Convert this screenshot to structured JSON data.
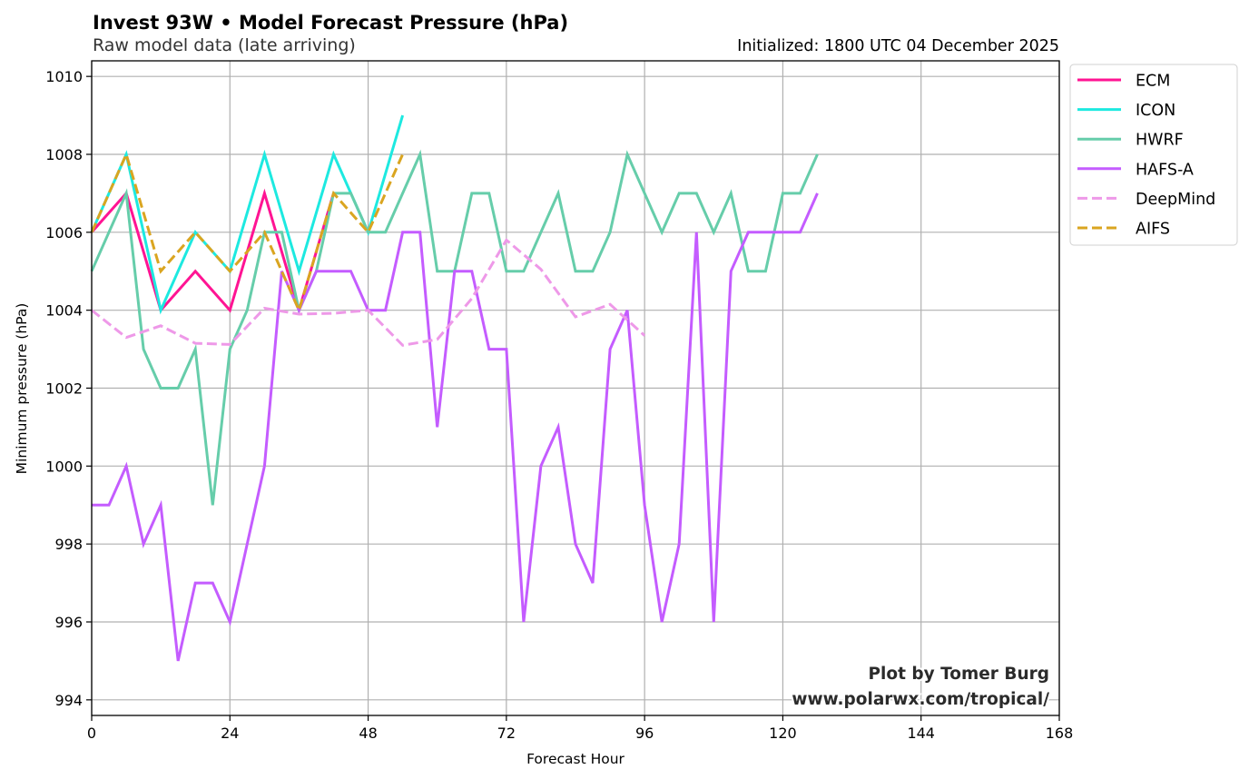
{
  "chart_data": {
    "type": "line",
    "title": "Invest 93W • Model Forecast Pressure (hPa)",
    "subtitle": "Raw model data (late arriving)",
    "initialized": "Initialized: 1800 UTC 04 December 2025",
    "xlabel": "Forecast Hour",
    "ylabel": "Minimum pressure (hPa)",
    "xlim": [
      0,
      168
    ],
    "ylim": [
      993.6,
      1010.4
    ],
    "xticks": [
      0,
      24,
      48,
      72,
      96,
      120,
      144,
      168
    ],
    "yticks": [
      994,
      996,
      998,
      1000,
      1002,
      1004,
      1006,
      1008,
      1010
    ],
    "grid": true,
    "legend_position": "outside-top-right",
    "credit": [
      "Plot by Tomer Burg",
      "www.polarwx.com/tropical/"
    ],
    "series": [
      {
        "name": "ECM",
        "color": "#ff1493",
        "dashed": false,
        "x": [
          0,
          6,
          12,
          18,
          24,
          30,
          36,
          42
        ],
        "y": [
          1006,
          1007,
          1004,
          1005,
          1004,
          1007,
          1004,
          1007
        ]
      },
      {
        "name": "ICON",
        "color": "#1de9e0",
        "dashed": false,
        "x": [
          0,
          6,
          12,
          18,
          24,
          30,
          36,
          42,
          48,
          54
        ],
        "y": [
          1006,
          1008,
          1004,
          1006,
          1005,
          1008,
          1005,
          1008,
          1006,
          1009
        ]
      },
      {
        "name": "HWRF",
        "color": "#66cdaa",
        "dashed": false,
        "x": [
          0,
          3,
          6,
          9,
          12,
          15,
          18,
          21,
          24,
          27,
          30,
          33,
          36,
          39,
          42,
          45,
          48,
          51,
          54,
          57,
          60,
          63,
          66,
          69,
          72,
          75,
          78,
          81,
          84,
          87,
          90,
          93,
          96,
          99,
          102,
          105,
          108,
          111,
          114,
          117,
          120,
          123,
          126
        ],
        "y": [
          1005,
          1006,
          1007,
          1003,
          1002,
          1002,
          1003,
          999,
          1003,
          1004,
          1006,
          1006,
          1004,
          1005,
          1007,
          1007,
          1006,
          1006,
          1007,
          1008,
          1005,
          1005,
          1007,
          1007,
          1005,
          1005,
          1006,
          1007,
          1005,
          1005,
          1006,
          1008,
          1007,
          1006,
          1007,
          1007,
          1006,
          1007,
          1005,
          1005,
          1007,
          1007,
          1008
        ]
      },
      {
        "name": "HAFS-A",
        "color": "#c45cff",
        "dashed": false,
        "x": [
          0,
          3,
          6,
          9,
          12,
          15,
          18,
          21,
          24,
          27,
          30,
          33,
          36,
          39,
          42,
          45,
          48,
          51,
          54,
          57,
          60,
          63,
          66,
          69,
          72,
          75,
          78,
          81,
          84,
          87,
          90,
          93,
          96,
          99,
          102,
          105,
          108,
          111,
          114,
          117,
          120,
          123,
          126
        ],
        "y": [
          999,
          999,
          1000,
          998,
          999,
          995,
          997,
          997,
          996,
          998,
          1000,
          1005,
          1004,
          1005,
          1005,
          1005,
          1004,
          1004,
          1006,
          1006,
          1001,
          1005,
          1005,
          1003,
          1003,
          996,
          1000,
          1001,
          998,
          997,
          1003,
          1004,
          999,
          996,
          998,
          1006,
          996,
          1005,
          1006,
          1006,
          1006,
          1006,
          1007
        ]
      },
      {
        "name": "DeepMind",
        "color": "#ee99e8",
        "dashed": true,
        "x": [
          0,
          6,
          12,
          18,
          24,
          30,
          36,
          42,
          48,
          54,
          60,
          66,
          72,
          78,
          84,
          90,
          96
        ],
        "y": [
          1004.0,
          1003.3,
          1003.6,
          1003.15,
          1003.12,
          1004.05,
          1003.9,
          1003.92,
          1004.0,
          1003.1,
          1003.25,
          1004.3,
          1005.8,
          1005.05,
          1003.83,
          1004.15,
          1003.35
        ]
      },
      {
        "name": "AIFS",
        "color": "#daa520",
        "dashed": true,
        "x": [
          0,
          6,
          12,
          18,
          24,
          30,
          36,
          42,
          48,
          54
        ],
        "y": [
          1006,
          1008,
          1005,
          1006,
          1005,
          1006,
          1004,
          1007,
          1006,
          1008
        ]
      }
    ]
  }
}
